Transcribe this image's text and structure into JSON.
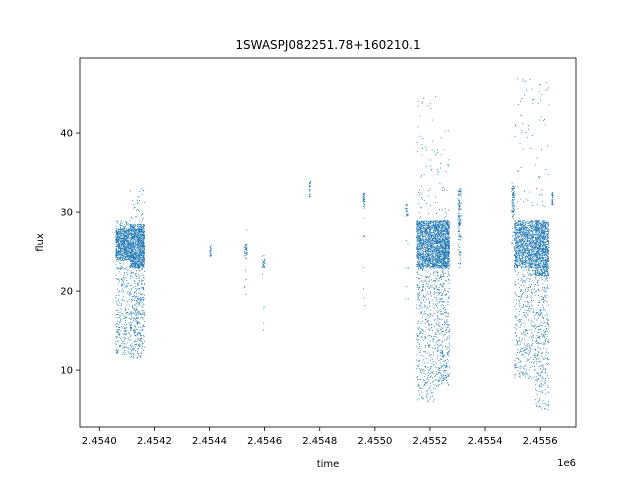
{
  "chart_data": {
    "type": "scatter",
    "title": "1SWASPJ082251.78+160210.1",
    "xlabel": "time",
    "ylabel": "flux",
    "x_offset_label": "1e6",
    "xlim": [
      2.45393,
      2.45573
    ],
    "ylim": [
      2.8,
      49.5
    ],
    "x_ticks": [
      2.454,
      2.4542,
      2.4544,
      2.4546,
      2.4548,
      2.455,
      2.4552,
      2.4554,
      2.4556
    ],
    "x_tick_labels": [
      "2.4540",
      "2.4542",
      "2.4544",
      "2.4546",
      "2.4548",
      "2.4550",
      "2.4552",
      "2.4554",
      "2.4556"
    ],
    "y_ticks": [
      10,
      20,
      30,
      40
    ],
    "y_tick_labels": [
      "10",
      "20",
      "30",
      "40"
    ],
    "grid": false,
    "point_color": "#1f77b4",
    "clusters": [
      {
        "x": [
          2.454058,
          2.45411
        ],
        "core": [
          24,
          28
        ],
        "spread": [
          12,
          29
        ],
        "n": 900
      },
      {
        "x": [
          2.45411,
          2.454163
        ],
        "core": [
          23,
          28.5
        ],
        "spread": [
          11.5,
          33
        ],
        "n": 1300
      },
      {
        "x": [
          2.4544,
          2.454405
        ],
        "core": [
          24.5,
          26
        ],
        "spread": [
          24.5,
          26.5
        ],
        "n": 25
      },
      {
        "x": [
          2.454525,
          2.454535
        ],
        "core": [
          24.5,
          26
        ],
        "spread": [
          16,
          31
        ],
        "n": 40
      },
      {
        "x": [
          2.45459,
          2.4546
        ],
        "core": [
          23,
          24
        ],
        "spread": [
          14,
          25
        ],
        "n": 30
      },
      {
        "x": [
          2.45476,
          2.454765
        ],
        "core": [
          32,
          34
        ],
        "spread": [
          32,
          34.5
        ],
        "n": 25
      },
      {
        "x": [
          2.454955,
          2.454962
        ],
        "core": [
          30.5,
          32.5
        ],
        "spread": [
          16,
          32.5
        ],
        "n": 40
      },
      {
        "x": [
          2.45511,
          2.45512
        ],
        "core": [
          29.5,
          31
        ],
        "spread": [
          19,
          31
        ],
        "n": 30
      },
      {
        "x": [
          2.45515,
          2.45522
        ],
        "core": [
          23,
          29
        ],
        "spread": [
          6,
          45
        ],
        "n": 1500
      },
      {
        "x": [
          2.45522,
          2.45527
        ],
        "core": [
          23,
          29
        ],
        "spread": [
          8,
          41
        ],
        "n": 1300
      },
      {
        "x": [
          2.4553,
          2.455312
        ],
        "core": [
          27,
          33
        ],
        "spread": [
          23,
          33
        ],
        "n": 120
      },
      {
        "x": [
          2.455495,
          2.455505
        ],
        "core": [
          30,
          33.5
        ],
        "spread": [
          26,
          34
        ],
        "n": 80
      },
      {
        "x": [
          2.455505,
          2.45558
        ],
        "core": [
          23,
          29
        ],
        "spread": [
          9,
          47
        ],
        "n": 1300
      },
      {
        "x": [
          2.45558,
          2.45563
        ],
        "core": [
          22,
          29
        ],
        "spread": [
          5,
          47
        ],
        "n": 1200
      },
      {
        "x": [
          2.45564,
          2.455645
        ],
        "core": [
          31,
          32.5
        ],
        "spread": [
          31,
          32.5
        ],
        "n": 25
      }
    ]
  }
}
